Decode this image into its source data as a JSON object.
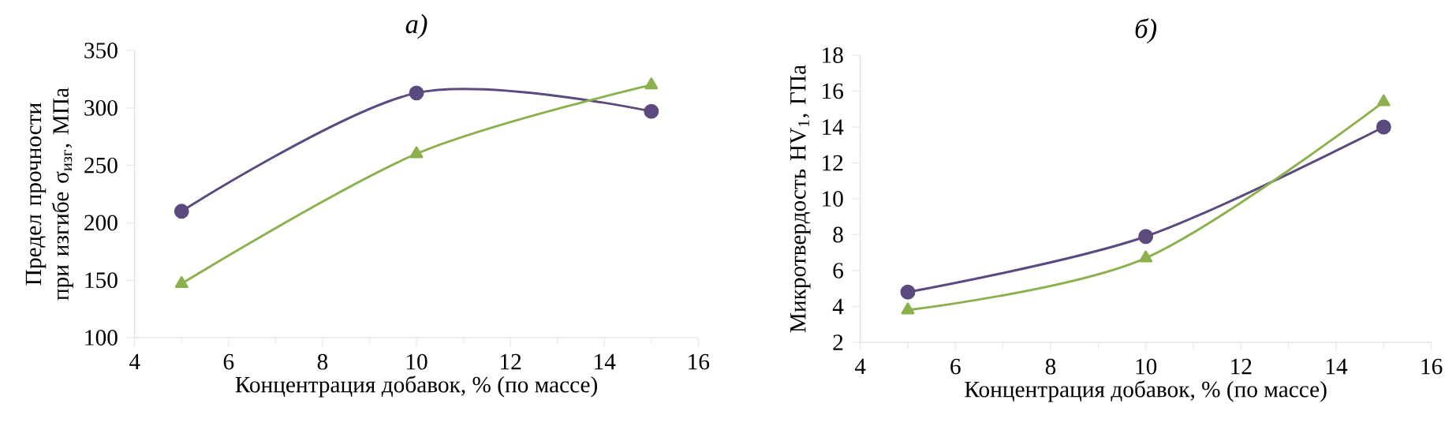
{
  "chart_data": [
    {
      "type": "line",
      "title": "*а)*",
      "xlabel": "Концентрация добавок, % (по массе)",
      "ylabel": "Предел прочности при изгибе σ$_{изг}$, МПа",
      "x": [
        5,
        10,
        15
      ],
      "xlim": [
        4,
        16
      ],
      "xticks": [
        4,
        6,
        8,
        10,
        12,
        14,
        16
      ],
      "ylim": [
        100,
        350
      ],
      "yticks": [
        100,
        150,
        200,
        250,
        300,
        350
      ],
      "series": [
        {
          "color": "#5b4a7e",
          "marker": "circle",
          "values": [
            210,
            313,
            297
          ]
        },
        {
          "color": "#8cb04e",
          "marker": "triangle",
          "values": [
            147,
            260,
            320
          ]
        }
      ]
    },
    {
      "type": "line",
      "title": "*б)*",
      "xlabel": "Концентрация добавок, % (по массе)",
      "ylabel": "Микротвердость HV$_{1}$, ГПа",
      "x": [
        5,
        10,
        15
      ],
      "xlim": [
        4,
        16
      ],
      "xticks": [
        4,
        6,
        8,
        10,
        12,
        14,
        16
      ],
      "ylim": [
        2,
        18
      ],
      "yticks": [
        2,
        4,
        6,
        8,
        10,
        12,
        14,
        16,
        18
      ],
      "series": [
        {
          "color": "#5b4a7e",
          "marker": "circle",
          "values": [
            4.8,
            7.9,
            14.0
          ]
        },
        {
          "color": "#8cb04e",
          "marker": "triangle",
          "values": [
            3.8,
            6.7,
            15.4
          ]
        }
      ]
    }
  ]
}
